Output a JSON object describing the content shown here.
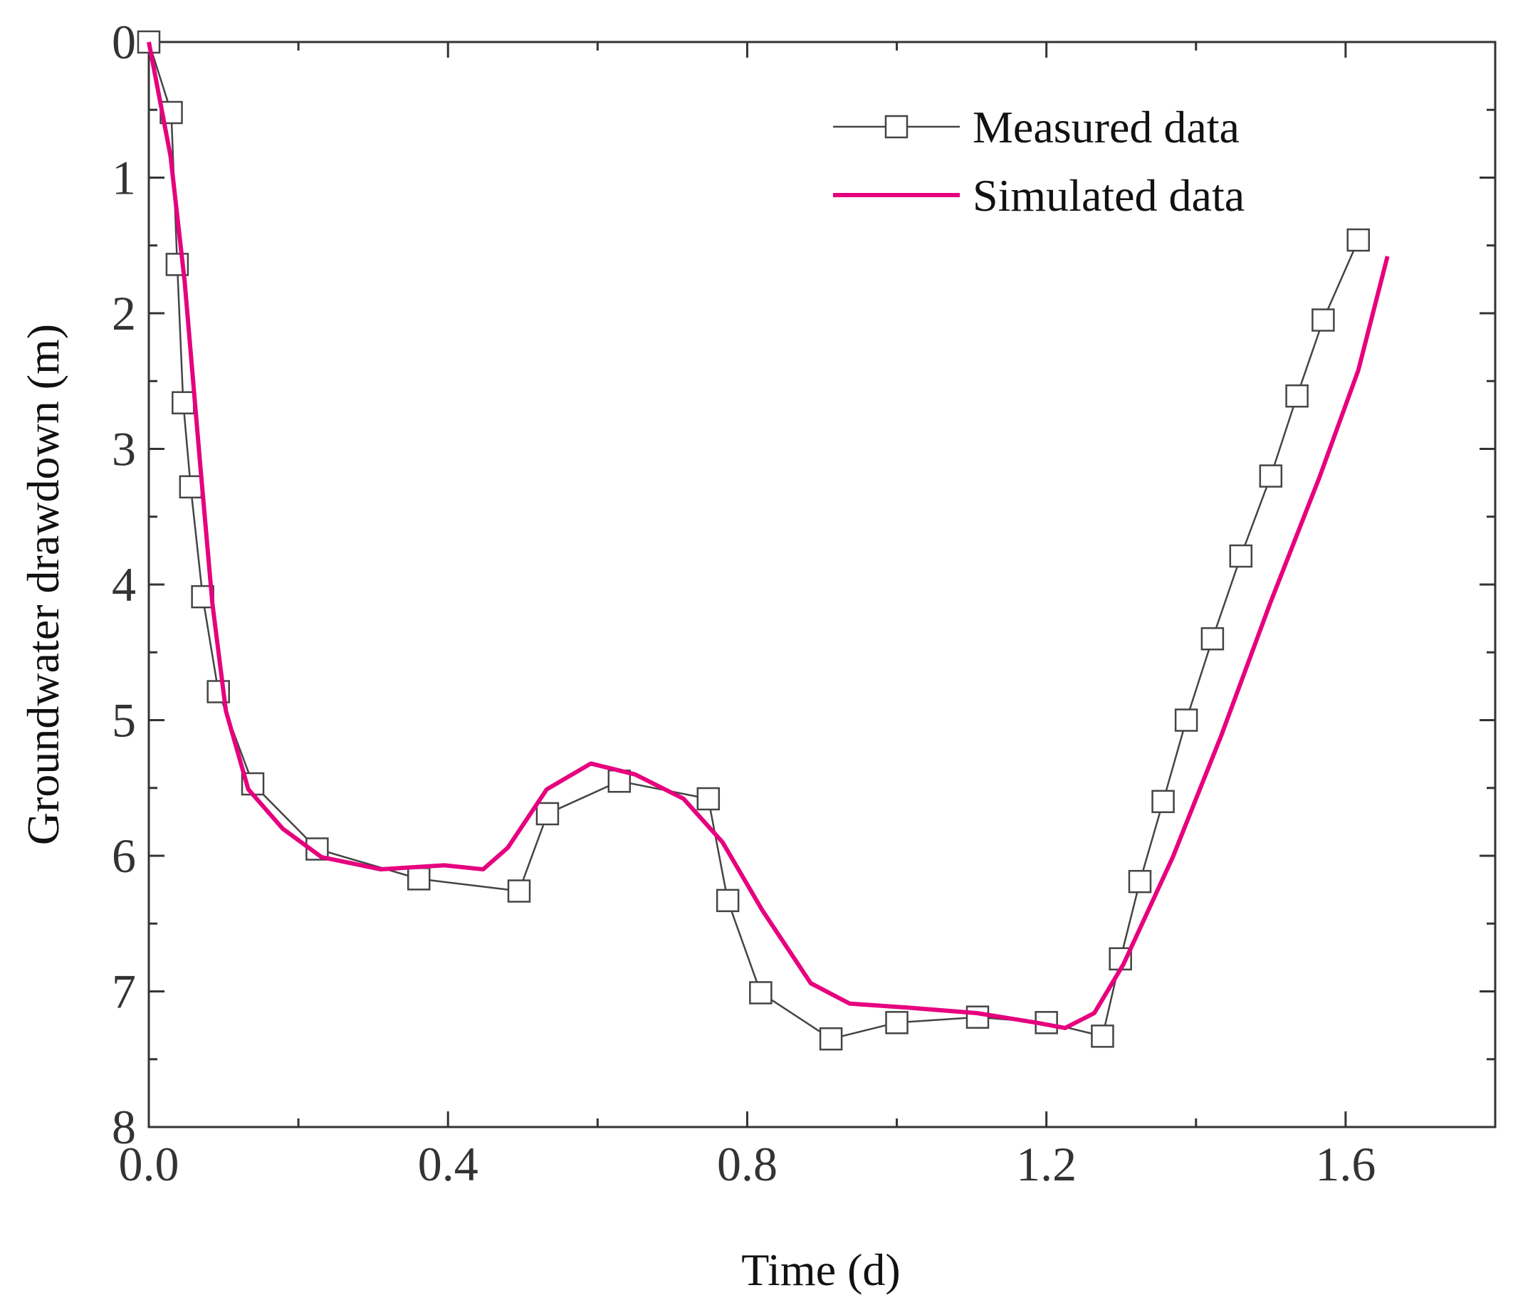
{
  "chart_data": {
    "type": "line",
    "xlabel": "Time (d)",
    "ylabel": "Groundwater drawdown (m)",
    "xlim": [
      0,
      1.8
    ],
    "xticks": [
      {
        "value": 0,
        "label": "0.0"
      },
      0.4,
      0.8,
      1.2,
      1.6
    ],
    "ylim": [
      0,
      8
    ],
    "yticks": [
      0,
      1,
      2,
      3,
      4,
      5,
      6,
      7,
      8
    ],
    "y_inverted": true,
    "grid": false,
    "legend": "upper right",
    "series": [
      {
        "name": "Measured data",
        "color": "#444444",
        "marker": "square",
        "x": [
          0,
          0.03,
          0.038,
          0.046,
          0.056,
          0.072,
          0.093,
          0.139,
          0.225,
          0.361,
          0.495,
          0.533,
          0.629,
          0.748,
          0.774,
          0.818,
          0.912,
          1.0,
          1.108,
          1.2,
          1.275,
          1.299,
          1.325,
          1.356,
          1.387,
          1.422,
          1.46,
          1.5,
          1.535,
          1.57,
          1.617
        ],
        "values": [
          0,
          0.52,
          1.64,
          2.66,
          3.28,
          4.09,
          4.79,
          5.47,
          5.95,
          6.17,
          6.26,
          5.69,
          5.45,
          5.58,
          6.33,
          7.01,
          7.35,
          7.23,
          7.19,
          7.23,
          7.33,
          6.76,
          6.19,
          5.6,
          5.0,
          4.4,
          3.79,
          3.2,
          2.61,
          2.05,
          1.46
        ]
      },
      {
        "name": "Simulated data",
        "color": "#e6007e",
        "marker": "none",
        "x": [
          0,
          0.029,
          0.048,
          0.068,
          0.085,
          0.103,
          0.133,
          0.179,
          0.231,
          0.31,
          0.395,
          0.447,
          0.48,
          0.532,
          0.591,
          0.65,
          0.715,
          0.767,
          0.82,
          0.885,
          0.937,
          1.016,
          1.107,
          1.186,
          1.225,
          1.264,
          1.303,
          1.369,
          1.434,
          1.499,
          1.565,
          1.617,
          1.656
        ],
        "values": [
          0,
          0.84,
          1.77,
          3.07,
          4.14,
          4.93,
          5.51,
          5.8,
          6.01,
          6.1,
          6.07,
          6.1,
          5.94,
          5.51,
          5.32,
          5.4,
          5.58,
          5.9,
          6.4,
          6.94,
          7.09,
          7.12,
          7.16,
          7.23,
          7.27,
          7.16,
          6.8,
          6.01,
          5.11,
          4.14,
          3.21,
          2.42,
          1.58
        ]
      }
    ]
  }
}
